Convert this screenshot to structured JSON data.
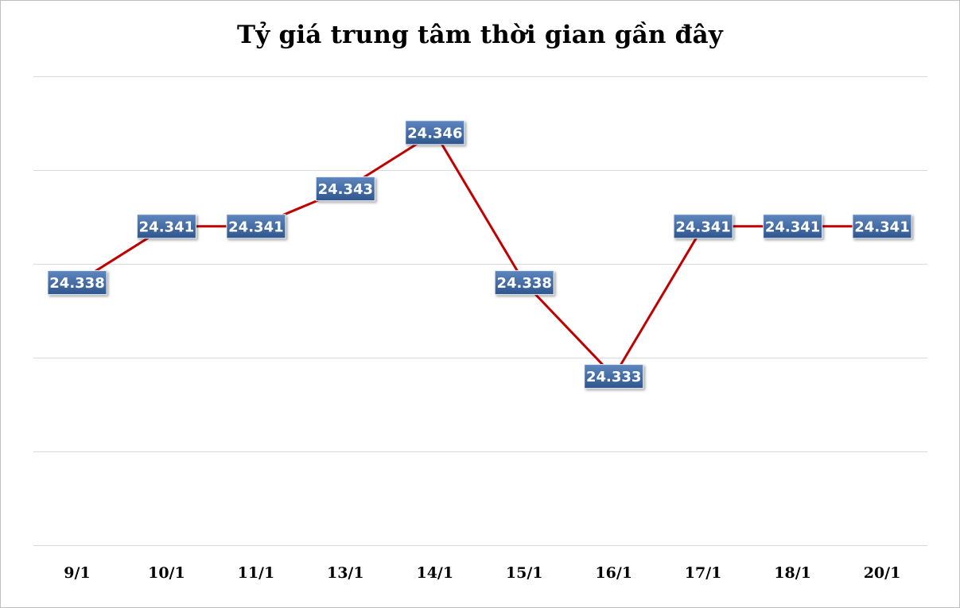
{
  "chart_data": {
    "type": "line",
    "title": "Tỷ giá trung tâm thời gian gần đây",
    "xlabel": "",
    "ylabel": "",
    "categories": [
      "9/1",
      "10/1",
      "11/1",
      "13/1",
      "14/1",
      "15/1",
      "16/1",
      "17/1",
      "18/1",
      "20/1"
    ],
    "values": [
      24338,
      24341,
      24341,
      24343,
      24346,
      24338,
      24333,
      24341,
      24341,
      24341
    ],
    "data_labels": [
      "24.338",
      "24.341",
      "24.341",
      "24.343",
      "24.346",
      "24.338",
      "24.333",
      "24.341",
      "24.341",
      "24.341"
    ],
    "ylim": [
      24324,
      24349
    ],
    "y_gridlines": [
      24329,
      24334,
      24339,
      24344,
      24349
    ],
    "y_axis_labels_shown": false,
    "grid": true,
    "legend": "none",
    "colors": {
      "line": "#c00000",
      "label_fill_top": "#5e86bf",
      "label_fill_bottom": "#2f568d",
      "label_text": "#ffffff",
      "gridline": "#d9d9d9"
    }
  }
}
